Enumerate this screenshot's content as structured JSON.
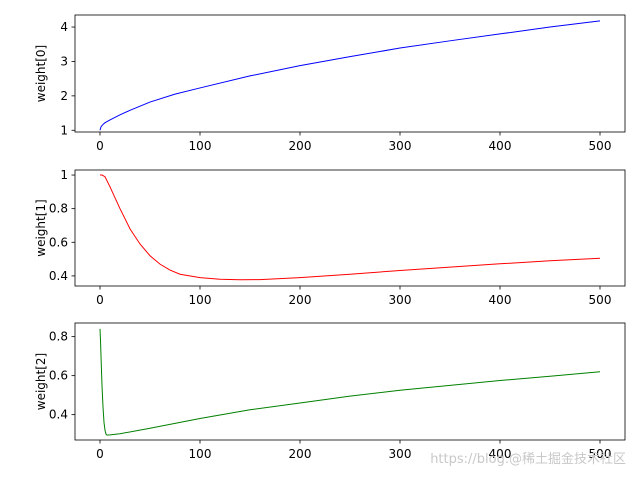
{
  "chart_data": [
    {
      "type": "line",
      "ylabel": "weight[0]",
      "xlim": [
        -25,
        525
      ],
      "ylim": [
        0.95,
        4.35
      ],
      "xticks": [
        0,
        100,
        200,
        300,
        400,
        500
      ],
      "yticks": [
        1,
        2,
        3,
        4
      ],
      "grid": false,
      "series": [
        {
          "color": "#0000ff",
          "x": [
            0,
            1,
            3,
            5,
            10,
            20,
            30,
            50,
            75,
            100,
            150,
            200,
            250,
            300,
            350,
            400,
            450,
            500
          ],
          "values": [
            1.0,
            1.1,
            1.17,
            1.22,
            1.3,
            1.45,
            1.58,
            1.82,
            2.05,
            2.23,
            2.58,
            2.88,
            3.14,
            3.39,
            3.6,
            3.8,
            4.0,
            4.18
          ]
        }
      ]
    },
    {
      "type": "line",
      "ylabel": "weight[1]",
      "xlim": [
        -25,
        525
      ],
      "ylim": [
        0.34,
        1.03
      ],
      "xticks": [
        0,
        100,
        200,
        300,
        400,
        500
      ],
      "yticks": [
        0.4,
        0.6,
        0.8,
        1.0
      ],
      "grid": false,
      "series": [
        {
          "color": "#ff0000",
          "x": [
            0,
            2,
            5,
            10,
            20,
            30,
            40,
            50,
            60,
            70,
            80,
            100,
            120,
            140,
            160,
            200,
            250,
            300,
            350,
            400,
            450,
            500
          ],
          "values": [
            1.0,
            1.0,
            0.99,
            0.93,
            0.8,
            0.68,
            0.59,
            0.52,
            0.47,
            0.435,
            0.41,
            0.39,
            0.38,
            0.377,
            0.378,
            0.39,
            0.41,
            0.432,
            0.452,
            0.472,
            0.49,
            0.505
          ]
        }
      ]
    },
    {
      "type": "line",
      "ylabel": "weight[2]",
      "xlim": [
        -25,
        525
      ],
      "ylim": [
        0.27,
        0.87
      ],
      "xticks": [
        0,
        100,
        200,
        300,
        400,
        500
      ],
      "yticks": [
        0.4,
        0.6,
        0.8
      ],
      "grid": false,
      "series": [
        {
          "color": "#008000",
          "x": [
            0,
            0.5,
            1,
            2,
            3,
            4,
            5,
            6,
            7,
            10,
            20,
            50,
            100,
            150,
            200,
            250,
            300,
            350,
            400,
            450,
            500
          ],
          "values": [
            0.84,
            0.78,
            0.7,
            0.55,
            0.44,
            0.36,
            0.32,
            0.3,
            0.295,
            0.296,
            0.302,
            0.33,
            0.38,
            0.425,
            0.46,
            0.495,
            0.525,
            0.55,
            0.575,
            0.597,
            0.62
          ]
        }
      ]
    }
  ],
  "watermark": "https://blog.@稀土掘金技术社区"
}
